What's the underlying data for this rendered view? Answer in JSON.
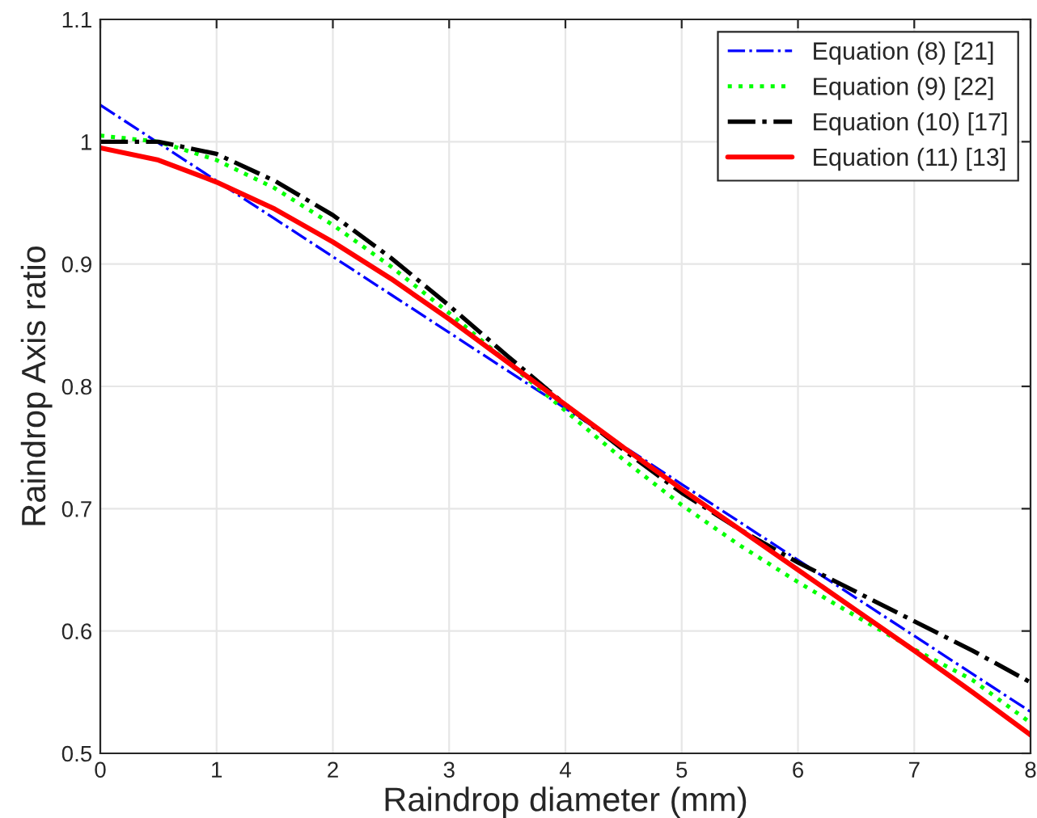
{
  "chart_data": {
    "type": "line",
    "xlabel": "Raindrop diameter (mm)",
    "ylabel": "Raindrop Axis ratio",
    "x": [
      0,
      0.5,
      1,
      1.5,
      2,
      2.5,
      3,
      3.5,
      4,
      4.5,
      5,
      5.5,
      6,
      6.5,
      7,
      7.5,
      8
    ],
    "series": [
      {
        "name": "Equation (8) [21]",
        "color": "#0000ff",
        "line_style": "dashed",
        "values": [
          1.03,
          0.999,
          0.968,
          0.937,
          0.906,
          0.875,
          0.844,
          0.813,
          0.782,
          0.751,
          0.72,
          0.689,
          0.658,
          0.627,
          0.596,
          0.565,
          0.534
        ]
      },
      {
        "name": "Equation (9) [22]",
        "color": "#00ff00",
        "line_style": "dotted",
        "values": [
          1.005,
          1.0,
          0.985,
          0.962,
          0.932,
          0.898,
          0.86,
          0.82,
          0.78,
          0.74,
          0.703,
          0.67,
          0.64,
          0.612,
          0.585,
          0.56,
          0.525
        ]
      },
      {
        "name": "Equation (10) [17]",
        "color": "#000000",
        "line_style": "dashed",
        "values": [
          1.0,
          1.0,
          0.99,
          0.968,
          0.94,
          0.905,
          0.866,
          0.825,
          0.785,
          0.748,
          0.713,
          0.683,
          0.656,
          0.632,
          0.608,
          0.584,
          0.558
        ]
      },
      {
        "name": "Equation (11) [13]",
        "color": "#ff0000",
        "line_style": "solid",
        "values": [
          0.995,
          0.985,
          0.967,
          0.945,
          0.918,
          0.888,
          0.855,
          0.82,
          0.785,
          0.75,
          0.716,
          0.683,
          0.65,
          0.617,
          0.584,
          0.55,
          0.515
        ]
      }
    ],
    "xlim": [
      0,
      8
    ],
    "xticks": [
      0,
      1,
      2,
      3,
      4,
      5,
      6,
      7,
      8
    ],
    "ylim": [
      0.5,
      1.1
    ],
    "yticks": [
      0.5,
      0.6,
      0.7,
      0.8,
      0.9,
      1,
      1.1
    ],
    "grid": true,
    "legend": "top right"
  }
}
